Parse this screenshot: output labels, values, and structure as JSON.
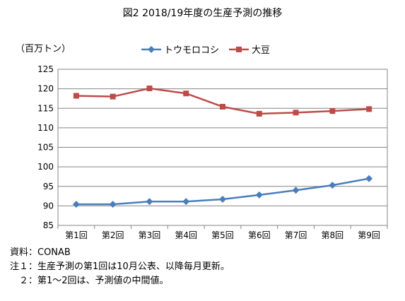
{
  "chart_data": {
    "type": "line",
    "title": "図2  2018/19年度の生産予測の推移",
    "ylabel": "（百万トン）",
    "xlabel": "",
    "categories": [
      "第1回",
      "第2回",
      "第3回",
      "第4回",
      "第5回",
      "第6回",
      "第7回",
      "第8回",
      "第9回"
    ],
    "ylim": [
      85,
      125
    ],
    "yticks": [
      85,
      90,
      95,
      100,
      105,
      110,
      115,
      120,
      125
    ],
    "grid": true,
    "legend_position": "top",
    "series": [
      {
        "name": "トウモロコシ",
        "color": "#4a7ebb",
        "marker": "diamond",
        "values": [
          90.4,
          90.4,
          91.1,
          91.1,
          91.7,
          92.8,
          94.0,
          95.3,
          97.0
        ]
      },
      {
        "name": "大豆",
        "color": "#be4b48",
        "marker": "square",
        "values": [
          118.2,
          118.0,
          120.1,
          118.8,
          115.4,
          113.6,
          113.9,
          114.3,
          114.8
        ]
      }
    ]
  },
  "notes": {
    "source": "資料：CONAB",
    "note1": "注１：生産予測の第1回は10月公表、以降毎月更新。",
    "note2": "　２：第1～2回は、予測値の中間値。"
  }
}
